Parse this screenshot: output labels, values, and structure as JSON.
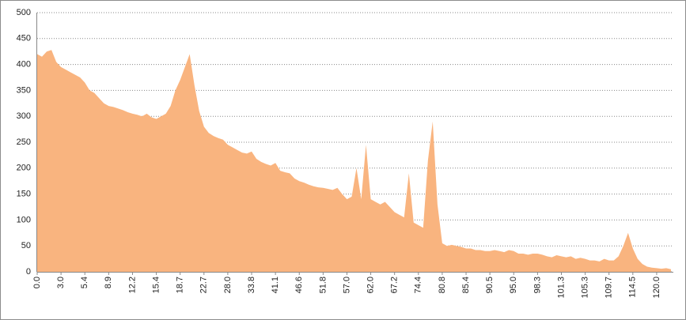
{
  "chart_data": {
    "type": "area",
    "color": "#f9b47f",
    "grid": true,
    "ylim": [
      0,
      500
    ],
    "yticks": [
      0,
      50,
      100,
      150,
      200,
      250,
      300,
      350,
      400,
      450,
      500
    ],
    "categories": [
      "0.0",
      null,
      null,
      null,
      null,
      "3.0",
      null,
      null,
      null,
      null,
      "5.4",
      null,
      null,
      null,
      null,
      "8.9",
      null,
      null,
      null,
      null,
      "12.2",
      null,
      null,
      null,
      null,
      "15.4",
      null,
      null,
      null,
      null,
      "18.7",
      null,
      null,
      null,
      null,
      "22.7",
      null,
      null,
      null,
      null,
      "28.0",
      null,
      null,
      null,
      null,
      "33.8",
      null,
      null,
      null,
      null,
      "41.1",
      null,
      null,
      null,
      null,
      "46.6",
      null,
      null,
      null,
      null,
      "51.8",
      null,
      null,
      null,
      null,
      "57.0",
      null,
      null,
      null,
      null,
      "62.0",
      null,
      null,
      null,
      null,
      "67.2",
      null,
      null,
      null,
      null,
      "74.4",
      null,
      null,
      null,
      null,
      "80.8",
      null,
      null,
      null,
      null,
      "85.4",
      null,
      null,
      null,
      null,
      "90.5",
      null,
      null,
      null,
      null,
      "95.0",
      null,
      null,
      null,
      null,
      "98.3",
      null,
      null,
      null,
      null,
      "101.3",
      null,
      null,
      null,
      null,
      "105.3",
      null,
      null,
      null,
      null,
      "109.7",
      null,
      null,
      null,
      null,
      "114.5",
      null,
      null,
      null,
      null,
      "120.0",
      null,
      null,
      null
    ],
    "values": [
      420,
      415,
      425,
      428,
      405,
      395,
      390,
      385,
      380,
      375,
      365,
      350,
      345,
      335,
      325,
      320,
      318,
      315,
      312,
      308,
      305,
      303,
      300,
      305,
      298,
      295,
      300,
      305,
      320,
      350,
      370,
      395,
      420,
      360,
      310,
      280,
      268,
      262,
      258,
      255,
      245,
      240,
      235,
      230,
      228,
      232,
      218,
      212,
      208,
      205,
      210,
      195,
      192,
      190,
      180,
      175,
      172,
      168,
      165,
      163,
      162,
      160,
      158,
      162,
      150,
      140,
      145,
      200,
      140,
      245,
      140,
      135,
      130,
      135,
      125,
      115,
      110,
      105,
      190,
      95,
      90,
      85,
      215,
      290,
      130,
      55,
      50,
      52,
      50,
      48,
      45,
      45,
      42,
      42,
      40,
      40,
      42,
      40,
      38,
      42,
      40,
      35,
      35,
      33,
      35,
      35,
      33,
      30,
      28,
      32,
      30,
      28,
      30,
      25,
      27,
      25,
      22,
      22,
      20,
      25,
      22,
      22,
      30,
      50,
      75,
      45,
      25,
      15,
      10,
      8,
      7,
      6,
      7,
      5
    ]
  }
}
